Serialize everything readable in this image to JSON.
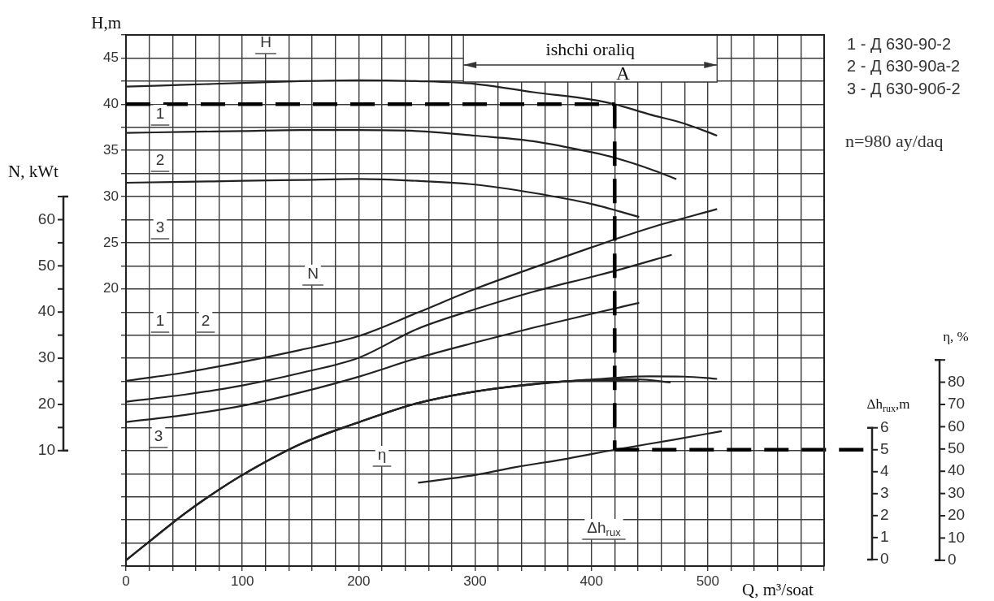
{
  "chart_data": [
    {
      "type": "line",
      "xlabel": "Q, m³/soat",
      "ylabel": "H,m",
      "y2label": "N, kWt",
      "y3label": "Δh$_{rux}$,m",
      "xlim": [
        0,
        600
      ],
      "xticks": [
        0,
        {
          "value": 20,
          "label": null
        },
        {
          "value": 40,
          "label": null
        },
        {
          "value": 60,
          "label": null
        },
        {
          "value": 80,
          "label": null
        },
        100,
        {
          "value": 120,
          "label": null
        },
        {
          "value": 140,
          "label": null
        },
        {
          "value": 160,
          "label": null
        },
        {
          "value": 180,
          "label": null
        },
        200,
        {
          "value": 220,
          "label": null
        },
        {
          "value": 240,
          "label": null
        },
        {
          "value": 260,
          "label": null
        },
        {
          "value": 280,
          "label": null
        },
        300,
        {
          "value": 320,
          "label": null
        },
        {
          "value": 340,
          "label": null
        },
        {
          "value": 360,
          "label": null
        },
        {
          "value": 380,
          "label": null
        },
        400,
        {
          "value": 420,
          "label": null
        },
        {
          "value": 440,
          "label": null
        },
        {
          "value": 460,
          "label": null
        },
        {
          "value": 480,
          "label": null
        },
        500,
        {
          "value": 520,
          "label": null
        },
        {
          "value": 540,
          "label": null
        },
        {
          "value": 560,
          "label": null
        },
        {
          "value": 580,
          "label": null
        },
        {
          "value": 600,
          "label": null
        }
      ],
      "ylim": [
        -10,
        47.5
      ],
      "yticks": [
        {
          "value": -10,
          "label": null
        },
        {
          "value": -7.5,
          "label": null
        },
        {
          "value": -5,
          "label": null
        },
        {
          "value": -2.5,
          "label": null
        },
        {
          "value": 0,
          "label": null
        },
        {
          "value": 2.5,
          "label": null
        },
        {
          "value": 5,
          "label": null
        },
        {
          "value": 7.5,
          "label": null
        },
        {
          "value": 10,
          "label": null
        },
        {
          "value": 12.5,
          "label": null
        },
        {
          "value": 15,
          "label": null
        },
        {
          "value": 17.5,
          "label": null
        },
        20,
        {
          "value": 22.5,
          "label": null
        },
        25,
        {
          "value": 27.5,
          "label": null
        },
        30,
        {
          "value": 32.5,
          "label": null
        },
        35,
        {
          "value": 37.5,
          "label": null
        },
        40,
        {
          "value": 42.5,
          "label": null
        },
        45,
        {
          "value": 47.5,
          "label": null
        }
      ],
      "y2lim": [
        -15,
        100
      ],
      "y2ticks": [
        10,
        {
          "value": 15,
          "label": null
        },
        20,
        {
          "value": 25,
          "label": null
        },
        30,
        {
          "value": 35,
          "label": null
        },
        40,
        {
          "value": 45,
          "label": null
        },
        50,
        {
          "value": 55,
          "label": null
        },
        60,
        {
          "value": 65,
          "label": null
        }
      ],
      "y3lim": [
        -0.3,
        23.9
      ],
      "y3ticks": [
        0,
        1,
        2,
        3,
        4,
        5,
        6
      ],
      "grid": true,
      "series": [
        {
          "axis": "y",
          "color": "#222222",
          "x": [
            0,
            50,
            100,
            150,
            200,
            250,
            300,
            350,
            400,
            420,
            450,
            480,
            508
          ],
          "values": [
            41.9,
            42.1,
            42.3,
            42.5,
            42.6,
            42.5,
            42.2,
            41.3,
            40.5,
            40.0,
            38.9,
            37.9,
            36.6
          ]
        },
        {
          "axis": "y",
          "color": "#222222",
          "x": [
            0,
            50,
            100,
            150,
            200,
            250,
            300,
            350,
            400,
            420,
            450,
            473
          ],
          "values": [
            36.9,
            37.0,
            37.1,
            37.2,
            37.2,
            37.1,
            36.6,
            36.0,
            34.8,
            34.2,
            33.0,
            31.9
          ]
        },
        {
          "axis": "y",
          "color": "#222222",
          "x": [
            0,
            50,
            100,
            150,
            200,
            250,
            300,
            350,
            400,
            441
          ],
          "values": [
            31.5,
            31.6,
            31.7,
            31.8,
            31.9,
            31.7,
            31.3,
            30.4,
            29.2,
            27.8
          ]
        },
        {
          "axis": "y2",
          "color": "#222222",
          "x": [
            0,
            50,
            100,
            150,
            200,
            250,
            300,
            350,
            400,
            450,
            508
          ],
          "values": [
            25.1,
            26.9,
            29.2,
            31.8,
            34.8,
            39.8,
            45.0,
            49.6,
            54.0,
            58.2,
            62.3
          ]
        },
        {
          "axis": "y2",
          "color": "#222222",
          "x": [
            0,
            50,
            100,
            150,
            200,
            250,
            300,
            350,
            400,
            420,
            469
          ],
          "values": [
            20.6,
            22.1,
            24.1,
            26.8,
            30.1,
            36.3,
            40.6,
            44.4,
            47.6,
            48.9,
            52.4
          ]
        },
        {
          "axis": "y2",
          "color": "#222222",
          "x": [
            0,
            50,
            100,
            150,
            200,
            250,
            300,
            350,
            400,
            441
          ],
          "values": [
            16.2,
            17.7,
            19.7,
            22.6,
            26.0,
            30.0,
            33.4,
            36.6,
            39.6,
            42.0
          ]
        },
        {
          "axis": "y3",
          "color": "#222222",
          "x": [
            251,
            300,
            334,
            380,
            420,
            470,
            512
          ],
          "values": [
            3.5,
            3.85,
            4.2,
            4.6,
            5.0,
            5.45,
            5.85
          ]
        }
      ],
      "ref_lines": [
        {
          "axis": "y",
          "value": 40,
          "color": "#000000",
          "line_style": "dashed"
        },
        {
          "axis": "x",
          "value": 420,
          "color": "#000000",
          "line_style": "dashed"
        },
        {
          "axis": "y3",
          "value": 5,
          "color": "#000000",
          "line_style": "dashed"
        }
      ],
      "bands": [
        {
          "axis": "x",
          "from": 290,
          "to": 508,
          "label": "ishchi oraliq"
        }
      ],
      "annotations": [
        "1 - Д 630-90-2",
        "2 - Д 630-90а-2",
        "3 - Д 630-90б-2",
        "n=980 ay/daq",
        {
          "text": "A",
          "x": 420,
          "y": 40
        },
        "H",
        "1",
        "2",
        "3",
        "N",
        "1",
        "2",
        "3",
        "η",
        "Δh$_{rux}$"
      ]
    },
    {
      "type": "line",
      "ylabel": "η, %",
      "xlim": [
        0,
        600
      ],
      "ylim": [
        -2.6,
        236
      ],
      "yticks": [
        0,
        10,
        20,
        30,
        40,
        50,
        60,
        70,
        80,
        {
          "value": 90,
          "label": null
        }
      ],
      "tick_labels": "y",
      "series": [
        {
          "color": "#222222",
          "x": [
            0,
            25,
            50,
            75,
            100,
            150,
            200,
            250,
            300,
            350,
            400,
            450,
            480,
            508
          ],
          "values": [
            0,
            10.5,
            20.8,
            30.0,
            38.3,
            52.2,
            62.0,
            70.5,
            75.8,
            79.2,
            81.2,
            82.6,
            82.5,
            81.5
          ]
        },
        {
          "color": "#222222",
          "x": [
            0,
            25,
            50,
            75,
            100,
            150,
            200,
            250,
            300,
            350,
            400,
            440,
            468
          ],
          "values": [
            0,
            10.5,
            20.8,
            30.0,
            38.3,
            52.2,
            62.0,
            70.5,
            75.8,
            79.2,
            81.0,
            81.3,
            79.9
          ]
        },
        {
          "color": "#222222",
          "x": [
            0,
            25,
            50,
            75,
            100,
            150,
            200,
            250,
            300,
            350,
            400,
            441
          ],
          "values": [
            0,
            10.5,
            20.8,
            30.0,
            38.3,
            52.2,
            62.0,
            70.5,
            75.8,
            79.0,
            80.8,
            80.7
          ]
        }
      ]
    }
  ]
}
